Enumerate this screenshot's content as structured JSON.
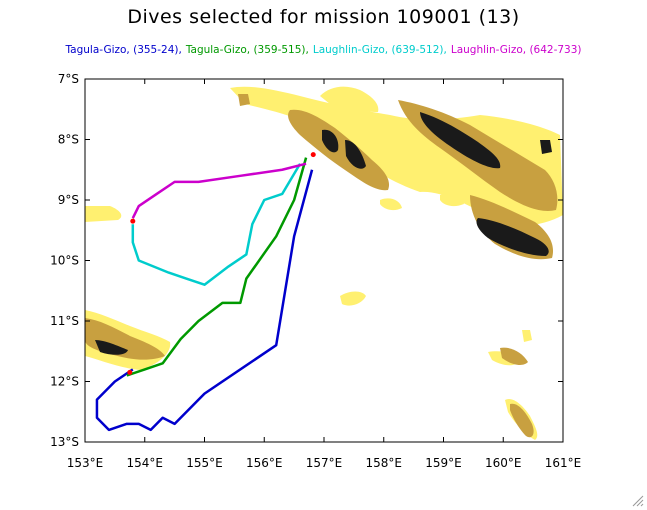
{
  "title": "Dives selected for mission 109001 (13)",
  "legend": [
    {
      "label": "Tagula-Gizo, (355-24),",
      "color": "#0000cc"
    },
    {
      "label": "Tagula-Gizo, (359-515),",
      "color": "#009900"
    },
    {
      "label": "Laughlin-Gizo, (639-512),",
      "color": "#00cccc"
    },
    {
      "label": "Laughlin-Gizo, (642-733)",
      "color": "#cc00cc"
    }
  ],
  "axes": {
    "x_ticks": [
      "153°E",
      "154°E",
      "155°E",
      "156°E",
      "157°E",
      "158°E",
      "159°E",
      "160°E",
      "161°E"
    ],
    "y_ticks": [
      "7°S",
      "8°S",
      "9°S",
      "10°S",
      "11°S",
      "12°S",
      "13°S"
    ],
    "lon_range": [
      153,
      161
    ],
    "lat_range": [
      -13,
      -7
    ]
  },
  "colors": {
    "shallow": "#fff070",
    "mid": "#c8a040",
    "deep": "#1a1a1a",
    "frame": "#000000"
  },
  "tracks": [
    {
      "name": "Tagula-Gizo, (355-24)",
      "color": "#0000cc",
      "points": [
        [
          156.8,
          -8.5
        ],
        [
          156.5,
          -9.6
        ],
        [
          156.2,
          -11.4
        ],
        [
          155.0,
          -12.2
        ],
        [
          154.5,
          -12.7
        ],
        [
          154.3,
          -12.6
        ],
        [
          154.1,
          -12.8
        ],
        [
          153.9,
          -12.7
        ],
        [
          153.7,
          -12.7
        ],
        [
          153.4,
          -12.8
        ],
        [
          153.2,
          -12.6
        ],
        [
          153.2,
          -12.3
        ],
        [
          153.5,
          -12.0
        ],
        [
          153.8,
          -11.8
        ]
      ]
    },
    {
      "name": "Tagula-Gizo, (359-515)",
      "color": "#009900",
      "points": [
        [
          156.7,
          -8.3
        ],
        [
          156.5,
          -9.0
        ],
        [
          156.2,
          -9.6
        ],
        [
          155.7,
          -10.3
        ],
        [
          155.6,
          -10.7
        ],
        [
          155.3,
          -10.7
        ],
        [
          154.9,
          -11.0
        ],
        [
          154.6,
          -11.3
        ],
        [
          154.3,
          -11.7
        ],
        [
          154.0,
          -11.8
        ],
        [
          153.7,
          -11.9
        ]
      ]
    },
    {
      "name": "Laughlin-Gizo, (639-512)",
      "color": "#00cccc",
      "points": [
        [
          156.6,
          -8.4
        ],
        [
          156.3,
          -8.9
        ],
        [
          156.0,
          -9.0
        ],
        [
          155.8,
          -9.4
        ],
        [
          155.7,
          -9.9
        ],
        [
          155.4,
          -10.1
        ],
        [
          155.0,
          -10.4
        ],
        [
          154.7,
          -10.3
        ],
        [
          154.4,
          -10.2
        ],
        [
          153.9,
          -10.0
        ],
        [
          153.8,
          -9.7
        ],
        [
          153.8,
          -9.4
        ]
      ]
    },
    {
      "name": "Laughlin-Gizo, (642-733)",
      "color": "#cc00cc",
      "points": [
        [
          156.7,
          -8.4
        ],
        [
          156.3,
          -8.5
        ],
        [
          155.6,
          -8.6
        ],
        [
          154.9,
          -8.7
        ],
        [
          154.5,
          -8.7
        ],
        [
          154.2,
          -8.9
        ],
        [
          153.9,
          -9.1
        ],
        [
          153.8,
          -9.3
        ]
      ]
    }
  ]
}
